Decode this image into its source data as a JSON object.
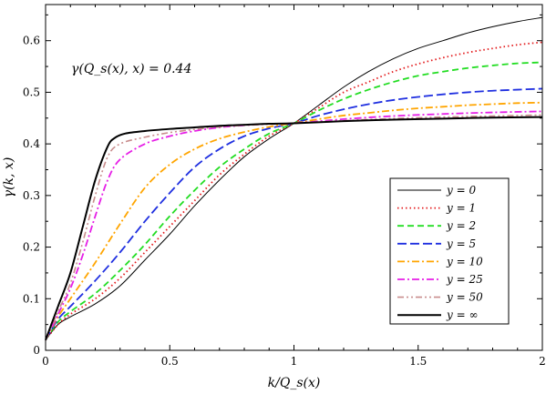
{
  "chart_data": {
    "type": "line",
    "title": "",
    "xlabel": "k/Q_s(x)",
    "ylabel": "γ(k, x)",
    "annotation": "γ(Q_s(x), x) = 0.44",
    "xlim": [
      0,
      2
    ],
    "ylim": [
      0,
      0.67
    ],
    "xticks": [
      0,
      0.5,
      1,
      1.5,
      2
    ],
    "xtick_labels": [
      "0",
      "0.5",
      "1",
      "1.5",
      "2"
    ],
    "yticks": [
      0,
      0.1,
      0.2,
      0.3,
      0.4,
      0.5,
      0.6
    ],
    "ytick_labels": [
      "0",
      "0.1",
      "0.2",
      "0.3",
      "0.4",
      "0.5",
      "0.6"
    ],
    "grid": false,
    "legend_position": "right",
    "series": [
      {
        "name": "y = 0",
        "color": "#000000",
        "dash": "solid",
        "x": [
          0,
          0.05,
          0.1,
          0.2,
          0.3,
          0.4,
          0.5,
          0.6,
          0.7,
          0.8,
          0.9,
          1.0,
          1.1,
          1.2,
          1.3,
          1.4,
          1.5,
          1.6,
          1.7,
          1.8,
          1.9,
          2.0
        ],
        "values": [
          0.02,
          0.05,
          0.065,
          0.09,
          0.125,
          0.175,
          0.225,
          0.28,
          0.33,
          0.375,
          0.41,
          0.44,
          0.475,
          0.51,
          0.54,
          0.565,
          0.585,
          0.6,
          0.615,
          0.627,
          0.637,
          0.645
        ]
      },
      {
        "name": "y = 1",
        "color": "#e31a1c",
        "dash": "dotted",
        "x": [
          0,
          0.05,
          0.1,
          0.2,
          0.3,
          0.4,
          0.5,
          0.6,
          0.7,
          0.8,
          0.9,
          1.0,
          1.1,
          1.2,
          1.3,
          1.4,
          1.5,
          1.6,
          1.7,
          1.8,
          1.9,
          2.0
        ],
        "values": [
          0.02,
          0.05,
          0.07,
          0.1,
          0.14,
          0.19,
          0.24,
          0.29,
          0.34,
          0.38,
          0.415,
          0.44,
          0.47,
          0.5,
          0.52,
          0.54,
          0.555,
          0.567,
          0.577,
          0.585,
          0.592,
          0.597
        ]
      },
      {
        "name": "y = 2",
        "color": "#22dd22",
        "dash": "dashed",
        "x": [
          0,
          0.05,
          0.1,
          0.2,
          0.3,
          0.4,
          0.5,
          0.6,
          0.7,
          0.8,
          0.9,
          1.0,
          1.1,
          1.2,
          1.3,
          1.4,
          1.5,
          1.6,
          1.7,
          1.8,
          1.9,
          2.0
        ],
        "values": [
          0.02,
          0.055,
          0.075,
          0.11,
          0.155,
          0.205,
          0.26,
          0.31,
          0.355,
          0.39,
          0.42,
          0.44,
          0.465,
          0.487,
          0.505,
          0.52,
          0.532,
          0.54,
          0.547,
          0.552,
          0.556,
          0.558
        ]
      },
      {
        "name": "y = 5",
        "color": "#1f2fe0",
        "dash": "longdash",
        "x": [
          0,
          0.05,
          0.1,
          0.2,
          0.3,
          0.4,
          0.5,
          0.6,
          0.7,
          0.8,
          0.9,
          1.0,
          1.1,
          1.2,
          1.3,
          1.4,
          1.5,
          1.6,
          1.7,
          1.8,
          1.9,
          2.0
        ],
        "values": [
          0.02,
          0.06,
          0.085,
          0.135,
          0.19,
          0.25,
          0.305,
          0.355,
          0.39,
          0.415,
          0.43,
          0.44,
          0.455,
          0.467,
          0.477,
          0.485,
          0.491,
          0.496,
          0.5,
          0.503,
          0.505,
          0.507
        ]
      },
      {
        "name": "y = 10",
        "color": "#ffa500",
        "dash": "dashdot",
        "x": [
          0,
          0.05,
          0.1,
          0.2,
          0.3,
          0.4,
          0.5,
          0.6,
          0.7,
          0.8,
          0.9,
          1.0,
          1.1,
          1.2,
          1.3,
          1.4,
          1.5,
          1.6,
          1.7,
          1.8,
          1.9,
          2.0
        ],
        "values": [
          0.02,
          0.065,
          0.1,
          0.17,
          0.245,
          0.315,
          0.36,
          0.39,
          0.41,
          0.423,
          0.433,
          0.44,
          0.448,
          0.455,
          0.46,
          0.465,
          0.469,
          0.472,
          0.475,
          0.477,
          0.479,
          0.48
        ]
      },
      {
        "name": "y = 25",
        "color": "#e61ee6",
        "dash": "dashdot",
        "x": [
          0,
          0.05,
          0.1,
          0.15,
          0.2,
          0.25,
          0.3,
          0.4,
          0.5,
          0.6,
          0.7,
          0.8,
          0.9,
          1.0,
          1.2,
          1.4,
          1.6,
          1.8,
          2.0
        ],
        "values": [
          0.02,
          0.07,
          0.12,
          0.185,
          0.26,
          0.33,
          0.37,
          0.4,
          0.415,
          0.425,
          0.432,
          0.436,
          0.439,
          0.44,
          0.448,
          0.454,
          0.458,
          0.461,
          0.463
        ]
      },
      {
        "name": "y = 50",
        "color": "#c88c8c",
        "dash": "dashdotdot",
        "x": [
          0,
          0.05,
          0.1,
          0.15,
          0.2,
          0.25,
          0.3,
          0.4,
          0.5,
          0.6,
          0.7,
          0.8,
          0.9,
          1.0,
          1.2,
          1.4,
          1.6,
          1.8,
          2.0
        ],
        "values": [
          0.02,
          0.075,
          0.13,
          0.21,
          0.3,
          0.375,
          0.4,
          0.413,
          0.422,
          0.428,
          0.433,
          0.436,
          0.438,
          0.44,
          0.445,
          0.449,
          0.452,
          0.454,
          0.456
        ]
      },
      {
        "name": "y = ∞",
        "color": "#000000",
        "dash": "solid-thick",
        "x": [
          0,
          0.05,
          0.1,
          0.15,
          0.2,
          0.25,
          0.28,
          0.32,
          0.4,
          0.5,
          0.6,
          0.7,
          0.8,
          0.9,
          1.0,
          1.2,
          1.4,
          1.6,
          1.8,
          2.0
        ],
        "values": [
          0.02,
          0.085,
          0.15,
          0.24,
          0.33,
          0.395,
          0.412,
          0.42,
          0.425,
          0.429,
          0.432,
          0.435,
          0.437,
          0.439,
          0.44,
          0.444,
          0.447,
          0.449,
          0.451,
          0.452
        ]
      }
    ]
  }
}
